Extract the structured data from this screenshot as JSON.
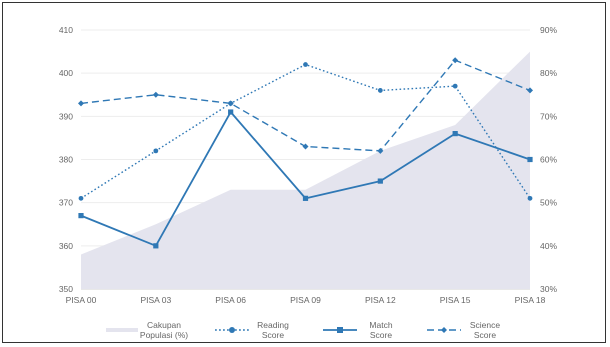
{
  "chart_data": {
    "type": "line",
    "categories": [
      "PISA 00",
      "PISA 03",
      "PISA 06",
      "PISA 09",
      "PISA 12",
      "PISA 15",
      "PISA 18"
    ],
    "y_left": {
      "min": 350,
      "max": 410,
      "ticks": [
        350,
        360,
        370,
        380,
        390,
        400,
        410
      ]
    },
    "y_right": {
      "min": 30,
      "max": 90,
      "ticks": [
        "30%",
        "40%",
        "50%",
        "60%",
        "70%",
        "80%",
        "90%"
      ]
    },
    "area": {
      "name_lines": [
        "Cakupan",
        "Populasi (%)"
      ],
      "values": [
        38,
        45,
        53,
        53,
        62,
        68,
        85
      ],
      "color": "#e4e4ee"
    },
    "series": [
      {
        "key": "reading",
        "name_lines": [
          "Reading",
          "Score"
        ],
        "values": [
          371,
          382,
          393,
          402,
          396,
          397,
          371
        ],
        "color": "#2f78b5",
        "dash": "1.6 2.4",
        "marker": "circle"
      },
      {
        "key": "match",
        "name_lines": [
          "Match",
          "Score"
        ],
        "values": [
          367,
          360,
          391,
          371,
          375,
          386,
          380
        ],
        "color": "#2f78b5",
        "dash": "",
        "marker": "square"
      },
      {
        "key": "science",
        "name_lines": [
          "Science",
          "Score"
        ],
        "values": [
          393,
          395,
          393,
          383,
          382,
          403,
          396
        ],
        "color": "#2f78b5",
        "dash": "7 4",
        "marker": "diamond"
      }
    ],
    "gridlines": true,
    "legend_position": "bottom"
  }
}
